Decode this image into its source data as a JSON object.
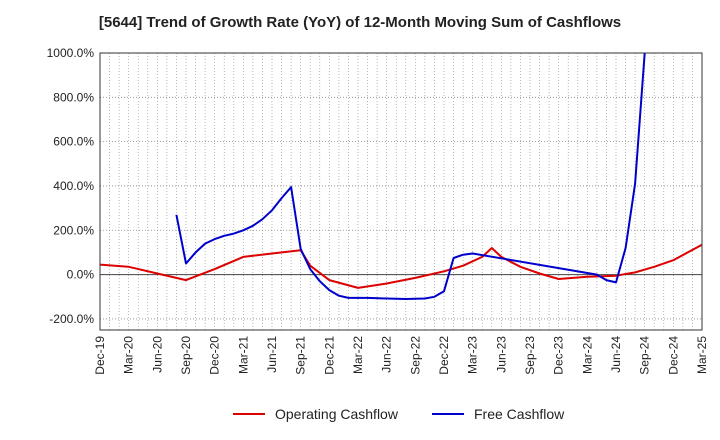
{
  "chart_data": {
    "type": "line",
    "title": "[5644]  Trend of Growth Rate (YoY) of 12-Month Moving Sum of Cashflows",
    "xlabel": "",
    "ylabel": "",
    "ylim": [
      -250,
      1000
    ],
    "y_ticks": [
      1000,
      800,
      600,
      400,
      200,
      0,
      -200
    ],
    "y_tick_labels": [
      "1000.0%",
      "800.0%",
      "600.0%",
      "400.0%",
      "200.0%",
      "0.0%",
      "-200.0%"
    ],
    "x_tick_labels": [
      "Dec-19",
      "Mar-20",
      "Jun-20",
      "Sep-20",
      "Dec-20",
      "Mar-21",
      "Jun-21",
      "Sep-21",
      "Dec-21",
      "Mar-22",
      "Jun-22",
      "Sep-22",
      "Dec-22",
      "Mar-23",
      "Jun-23",
      "Sep-23",
      "Dec-23",
      "Mar-24",
      "Jun-24",
      "Sep-24",
      "Dec-24",
      "Mar-25"
    ],
    "grid": true,
    "legend_position": "bottom",
    "series": [
      {
        "name": "Operating Cashflow",
        "color": "#dd0000",
        "values": [
          [
            0,
            45
          ],
          [
            3,
            35
          ],
          [
            6,
            5
          ],
          [
            9,
            -25
          ],
          [
            12,
            25
          ],
          [
            15,
            80
          ],
          [
            18,
            95
          ],
          [
            21,
            110
          ],
          [
            22,
            40
          ],
          [
            24,
            -25
          ],
          [
            27,
            -60
          ],
          [
            30,
            -40
          ],
          [
            33,
            -15
          ],
          [
            36,
            15
          ],
          [
            38,
            40
          ],
          [
            40,
            80
          ],
          [
            41,
            120
          ],
          [
            42,
            80
          ],
          [
            44,
            35
          ],
          [
            46,
            5
          ],
          [
            48,
            -20
          ],
          [
            51,
            -10
          ],
          [
            54,
            -5
          ],
          [
            56,
            10
          ],
          [
            58,
            35
          ],
          [
            60,
            65
          ],
          [
            63,
            135
          ]
        ]
      },
      {
        "name": "Free Cashflow",
        "color": "#0000cc",
        "values": [
          [
            8,
            270
          ],
          [
            9,
            50
          ],
          [
            10,
            100
          ],
          [
            11,
            140
          ],
          [
            12,
            160
          ],
          [
            13,
            175
          ],
          [
            14,
            185
          ],
          [
            15,
            200
          ],
          [
            16,
            220
          ],
          [
            17,
            250
          ],
          [
            18,
            290
          ],
          [
            19,
            345
          ],
          [
            20,
            395
          ],
          [
            21,
            115
          ],
          [
            22,
            25
          ],
          [
            23,
            -30
          ],
          [
            24,
            -70
          ],
          [
            25,
            -95
          ],
          [
            26,
            -105
          ],
          [
            28,
            -105
          ],
          [
            30,
            -108
          ],
          [
            32,
            -110
          ],
          [
            34,
            -108
          ],
          [
            35,
            -100
          ],
          [
            36,
            -75
          ],
          [
            37,
            75
          ],
          [
            38,
            90
          ],
          [
            39,
            95
          ],
          [
            52,
            0
          ],
          [
            53,
            -25
          ],
          [
            54,
            -35
          ],
          [
            55,
            120
          ],
          [
            56,
            410
          ],
          [
            57,
            1000
          ]
        ]
      }
    ]
  }
}
